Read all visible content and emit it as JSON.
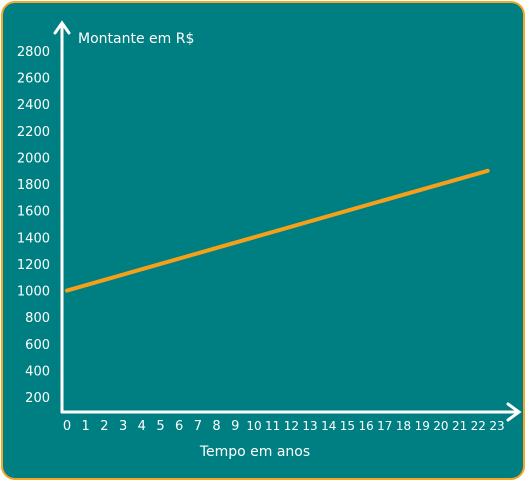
{
  "chart_data": {
    "type": "line",
    "title": "",
    "xlabel": "Tempo em anos",
    "ylabel": "Montante em R$",
    "x_ticks": [
      "0",
      "1",
      "2",
      "3",
      "4",
      "5",
      "6",
      "7",
      "8",
      "9",
      "10",
      "11",
      "12",
      "13",
      "14",
      "15",
      "16",
      "17",
      "18",
      "19",
      "20",
      "21",
      "22",
      "23"
    ],
    "y_ticks": [
      "200",
      "400",
      "600",
      "800",
      "1000",
      "1200",
      "1400",
      "1600",
      "1800",
      "2000",
      "2200",
      "2400",
      "2600",
      "2800"
    ],
    "xlim": [
      0,
      23
    ],
    "ylim": [
      0,
      2800
    ],
    "series": [
      {
        "x": [
          0,
          22.5
        ],
        "y": [
          1000,
          1900
        ]
      }
    ],
    "grid": false,
    "line_color": "#f6a01a",
    "axis_color": "#ffffff",
    "background_color": "#007f82",
    "border_color": "#f6a623"
  }
}
